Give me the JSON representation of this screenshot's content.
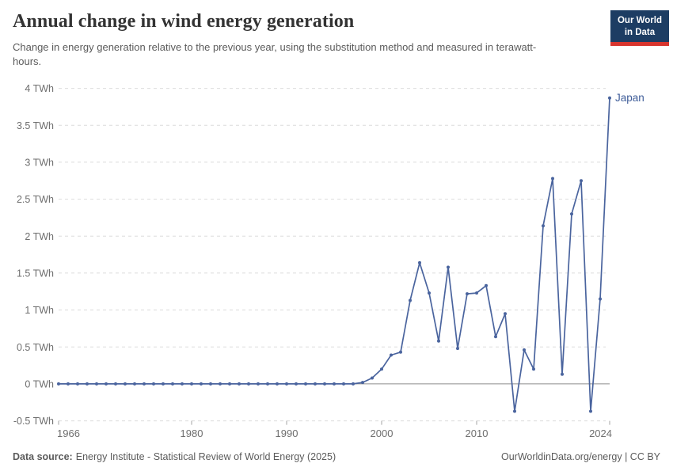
{
  "header": {
    "title": "Annual change in wind energy generation",
    "subtitle": "Change in energy generation relative to the previous year, using the substitution method and measured in terawatt-hours."
  },
  "logo": {
    "line1": "Our World",
    "line2": "in Data"
  },
  "chart_data": {
    "type": "line",
    "title": "Annual change in wind energy generation",
    "entity": "Japan",
    "unit": "TWh",
    "xlim": [
      1966,
      2024
    ],
    "ylim": [
      -0.5,
      4
    ],
    "grid": "horizontal-dashed",
    "legend_position": "line-end-label",
    "x": [
      1966,
      1967,
      1968,
      1969,
      1970,
      1971,
      1972,
      1973,
      1974,
      1975,
      1976,
      1977,
      1978,
      1979,
      1980,
      1981,
      1982,
      1983,
      1984,
      1985,
      1986,
      1987,
      1988,
      1989,
      1990,
      1991,
      1992,
      1993,
      1994,
      1995,
      1996,
      1997,
      1998,
      1999,
      2000,
      2001,
      2002,
      2003,
      2004,
      2005,
      2006,
      2007,
      2008,
      2009,
      2010,
      2011,
      2012,
      2013,
      2014,
      2015,
      2016,
      2017,
      2018,
      2019,
      2020,
      2021,
      2022,
      2023,
      2024
    ],
    "series": [
      {
        "name": "Japan",
        "values": [
          0,
          0,
          0,
          0,
          0,
          0,
          0,
          0,
          0,
          0,
          0,
          0,
          0,
          0,
          0,
          0,
          0,
          0,
          0,
          0,
          0,
          0,
          0,
          0,
          0,
          0,
          0,
          0,
          0,
          0,
          0,
          0,
          0.02,
          0.08,
          0.2,
          0.39,
          0.43,
          1.13,
          1.64,
          1.23,
          0.58,
          1.58,
          0.48,
          1.22,
          1.23,
          1.33,
          0.64,
          0.95,
          -0.37,
          0.46,
          0.2,
          2.14,
          2.78,
          0.13,
          2.3,
          2.75,
          -0.37,
          1.15,
          3.87
        ]
      }
    ],
    "y_ticks": [
      {
        "value": 4,
        "label": "4 TWh"
      },
      {
        "value": 3.5,
        "label": "3.5 TWh"
      },
      {
        "value": 3,
        "label": "3 TWh"
      },
      {
        "value": 2.5,
        "label": "2.5 TWh"
      },
      {
        "value": 2,
        "label": "2 TWh"
      },
      {
        "value": 1.5,
        "label": "1.5 TWh"
      },
      {
        "value": 1,
        "label": "1 TWh"
      },
      {
        "value": 0.5,
        "label": "0.5 TWh"
      },
      {
        "value": 0,
        "label": "0 TWh"
      },
      {
        "value": -0.5,
        "label": "-0.5 TWh"
      }
    ],
    "x_ticks": [
      {
        "value": 1966,
        "label": "1966"
      },
      {
        "value": 1980,
        "label": "1980"
      },
      {
        "value": 1990,
        "label": "1990"
      },
      {
        "value": 2000,
        "label": "2000"
      },
      {
        "value": 2010,
        "label": "2010"
      },
      {
        "value": 2024,
        "label": "2024"
      }
    ]
  },
  "colors": {
    "line": "#4a649e",
    "series_label": "#3f5d99",
    "grid": "#dcdcdc",
    "zero_line": "#8c8c8c",
    "tick_mark": "#a3a3a3",
    "axis_text": "#6e6e6e",
    "title": "#333333",
    "subtitle": "#5b5b5b",
    "logo_bg": "#1d3d63",
    "logo_stripe": "#d8352e"
  },
  "footer": {
    "datasource_label": "Data source:",
    "datasource": "Energy Institute - Statistical Review of World Energy (2025)",
    "right": "OurWorldinData.org/energy | CC BY"
  }
}
